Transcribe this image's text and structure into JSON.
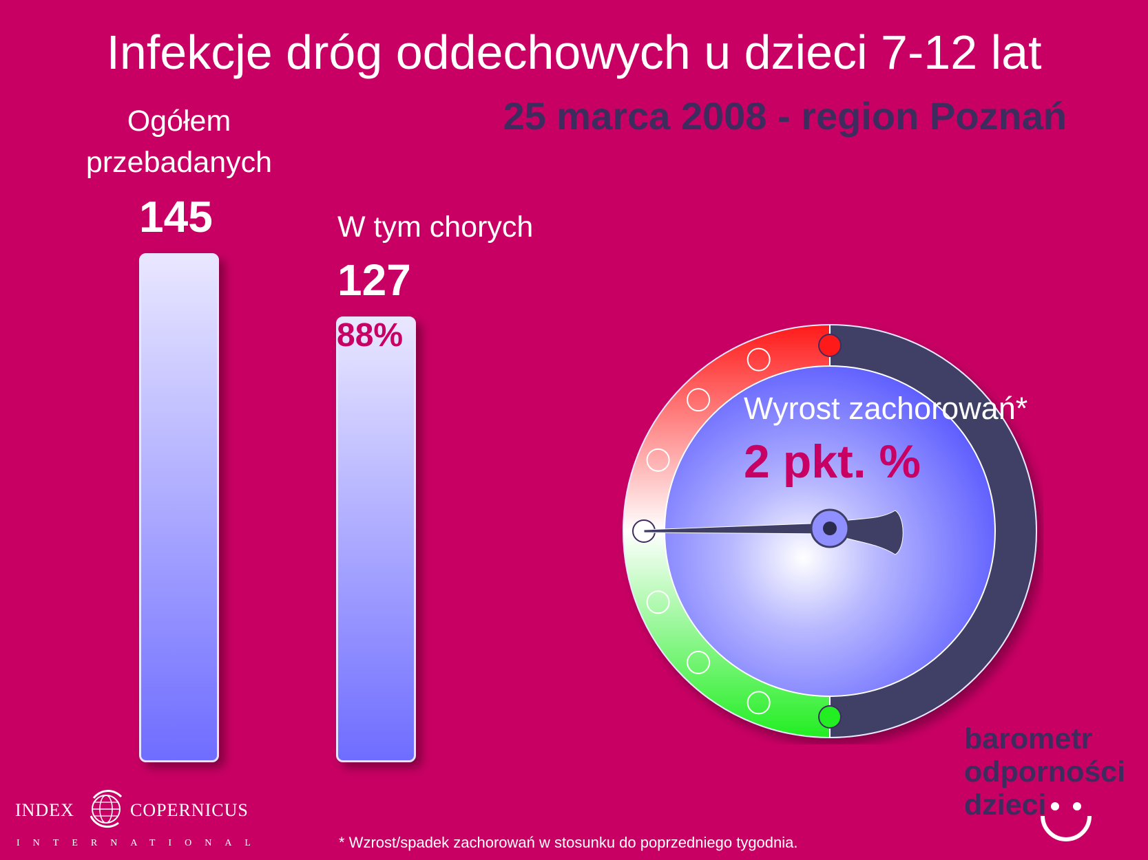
{
  "title": "Infekcje dróg oddechowych u dzieci 7-12 lat",
  "subtitle": "25 marca 2008 - region Poznań",
  "colors": {
    "background": "#c90064",
    "subtitle": "#3f2c5e",
    "accent": "#c90064",
    "gauge_red": "#ff1a1a",
    "gauge_green": "#22ee22",
    "gauge_dark": "#3f3f66"
  },
  "chart_data": [
    {
      "type": "bar",
      "categories": [
        "Ogółem przebadanych",
        "W tym chorych"
      ],
      "values": [
        145,
        127
      ],
      "bar_labels": {
        "total_line1": "Ogółem",
        "total_line2": "przebadanych",
        "total_value": "145",
        "sick_label": "W tym chorych",
        "sick_value": "127",
        "sick_percent": "88%"
      },
      "percent_sick": 88
    },
    {
      "type": "gauge",
      "label": "Wyrost zachorowań*",
      "value_text": "2 pkt. %",
      "value": 2,
      "scale_ticks": 9,
      "needle_tick": 4
    }
  ],
  "footnote": "* Wzrost/spadek zachorowań w stosunku do poprzedniego tygodnia.",
  "brand": {
    "line1": "barometr",
    "line2": "odporności",
    "line3": "dzieci",
    "smiley_icon": "smiley-icon"
  },
  "logo": {
    "left_word": "INDEX",
    "right_word": "COPERNICUS",
    "sub": "INTERNATIONAL",
    "icon": "globe-icon"
  }
}
